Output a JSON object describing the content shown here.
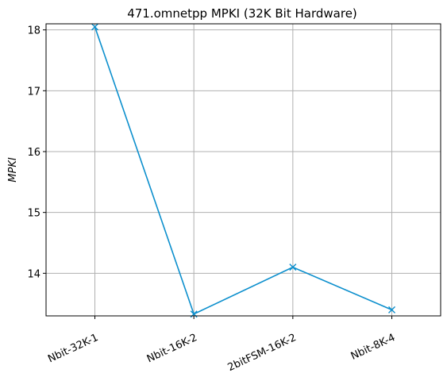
{
  "chart_data": {
    "type": "line",
    "title": "471.omnetpp MPKI (32K Bit Hardware)",
    "xlabel": "",
    "ylabel": "MPKI",
    "categories": [
      "Nbit-32K-1",
      "Nbit-16K-2",
      "2bitFSM-16K-2",
      "Nbit-8K-4"
    ],
    "series": [
      {
        "values": [
          18.05,
          13.33,
          14.1,
          13.4
        ],
        "color": "#0c8fcd",
        "marker": "x"
      }
    ],
    "ylim": [
      13.3,
      18.1
    ],
    "yticks": [
      14,
      15,
      16,
      17,
      18
    ],
    "grid": true,
    "legend": "none"
  }
}
